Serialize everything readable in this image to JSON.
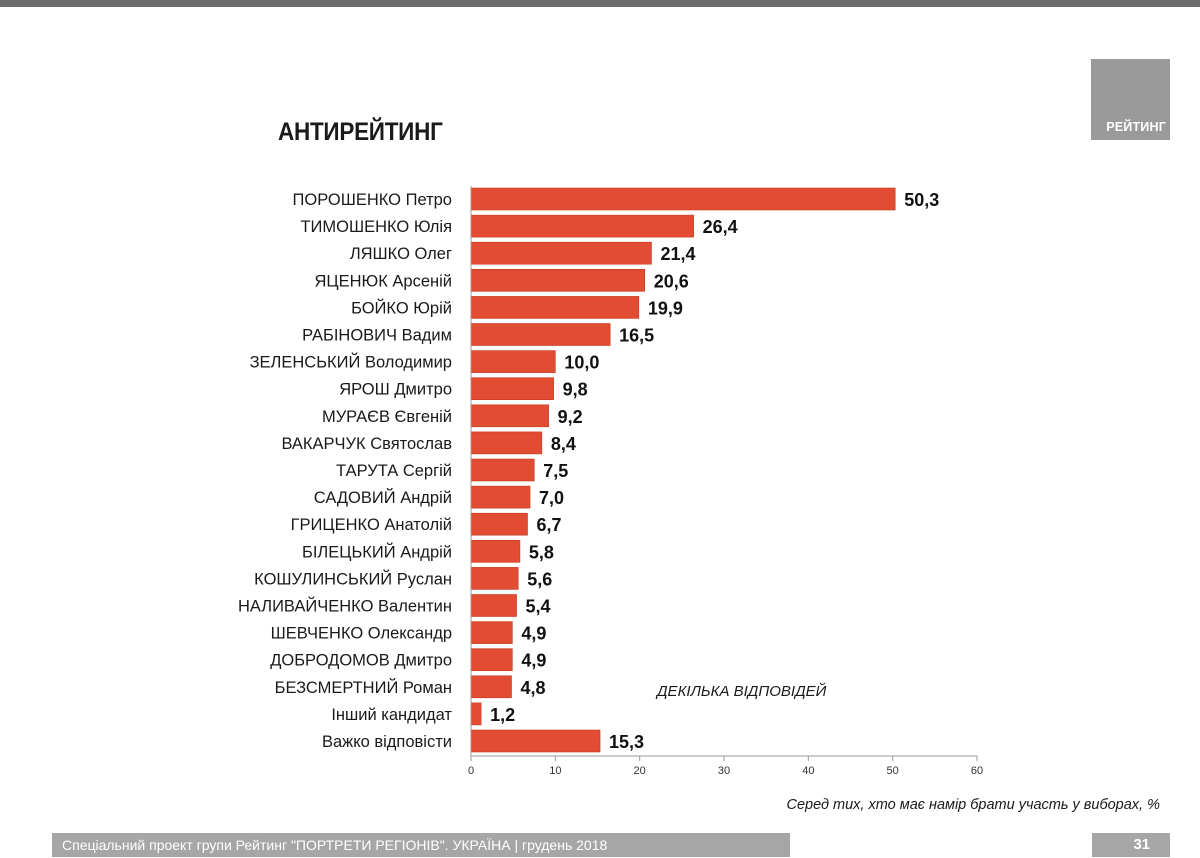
{
  "brand": {
    "label": "РЕЙТИНГ"
  },
  "chart_data": {
    "type": "bar",
    "orientation": "horizontal",
    "title": "АНТИРЕЙТИНГ",
    "categories": [
      "ПОРОШЕНКО Петро",
      "ТИМОШЕНКО Юлія",
      "ЛЯШКО Олег",
      "ЯЦЕНЮК Арсеній",
      "БОЙКО Юрій",
      "РАБІНОВИЧ Вадим",
      "ЗЕЛЕНСЬКИЙ Володимир",
      "ЯРОШ Дмитро",
      "МУРАЄВ Євгеній",
      "ВАКАРЧУК Святослав",
      "ТАРУТА Сергій",
      "САДОВИЙ Андрій",
      "ГРИЦЕНКО Анатолій",
      "БІЛЕЦЬКИЙ Андрій",
      "КОШУЛИНСЬКИЙ Руслан",
      "НАЛИВАЙЧЕНКО Валентин",
      "ШЕВЧЕНКО Олександр",
      "ДОБРОДОМОВ Дмитро",
      "БЕЗСМЕРТНИЙ Роман",
      "Інший кандидат",
      "Важко відповісти"
    ],
    "values": [
      50.3,
      26.4,
      21.4,
      20.6,
      19.9,
      16.5,
      10.0,
      9.8,
      9.2,
      8.4,
      7.5,
      7.0,
      6.7,
      5.8,
      5.6,
      5.4,
      4.9,
      4.9,
      4.8,
      1.2,
      15.3
    ],
    "value_labels": [
      "50,3",
      "26,4",
      "21,4",
      "20,6",
      "19,9",
      "16,5",
      "10,0",
      "9,8",
      "9,2",
      "8,4",
      "7,5",
      "7,0",
      "6,7",
      "5,8",
      "5,6",
      "5,4",
      "4,9",
      "4,9",
      "4,8",
      "1,2",
      "15,3"
    ],
    "xlim": [
      0,
      60
    ],
    "xticks": [
      0,
      10,
      20,
      30,
      40,
      50,
      60
    ],
    "grid": false,
    "legend": "none",
    "bar_color": "#e24c33",
    "annotation": "ДЕКІЛЬКА ВІДПОВІДЕЙ",
    "note": "Серед тих, хто має намір брати участь у виборах, %"
  },
  "footer": {
    "text": "Спеціальний проект групи Рейтинг \"ПОРТРЕТИ РЕГІОНІВ\". УКРАЇНА | грудень 2018",
    "page": "31"
  }
}
